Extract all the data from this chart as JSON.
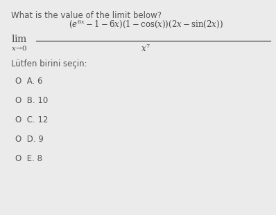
{
  "title": "What is the value of the limit below?",
  "background_color": "#ebebeb",
  "text_color": "#555555",
  "formula_color": "#444444",
  "options": [
    "O  A. 6",
    "O  B. 10",
    "O  C. 12",
    "O  D. 9",
    "O  E. 8"
  ],
  "subtitle": "Lütfen birini seçin:",
  "figsize": [
    3.98,
    3.11
  ],
  "dpi": 100
}
